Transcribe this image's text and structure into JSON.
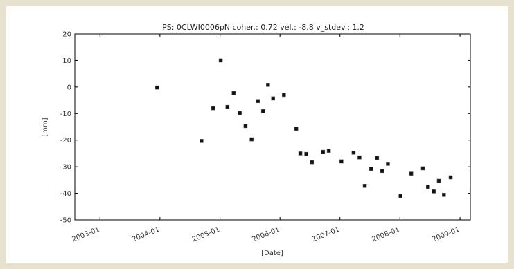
{
  "chart_data": {
    "type": "scatter",
    "title": "PS: 0CLWI0006pN coher.: 0.72 vel.: -8.8 v_stdev.: 1.2",
    "xlabel": "[Date]",
    "ylabel": "[mm]",
    "xlim": [
      "2002-08-01",
      "2009-03-05"
    ],
    "ylim": [
      -50,
      20
    ],
    "yticks": [
      20,
      10,
      0,
      -10,
      -20,
      -30,
      -40,
      -50
    ],
    "xticks": [
      "2003-01",
      "2004-01",
      "2005-01",
      "2006-01",
      "2007-01",
      "2008-01",
      "2009-01"
    ],
    "marker_color": "#111111",
    "grid": false,
    "points": [
      {
        "x": "2003-12-15",
        "y": -0.2
      },
      {
        "x": "2004-09-10",
        "y": -20.3
      },
      {
        "x": "2004-11-20",
        "y": -8.0
      },
      {
        "x": "2005-01-05",
        "y": 10.0
      },
      {
        "x": "2005-02-15",
        "y": -7.5
      },
      {
        "x": "2005-03-25",
        "y": -2.3
      },
      {
        "x": "2005-05-01",
        "y": -9.8
      },
      {
        "x": "2005-06-05",
        "y": -14.7
      },
      {
        "x": "2005-07-12",
        "y": -19.7
      },
      {
        "x": "2005-08-20",
        "y": -5.3
      },
      {
        "x": "2005-09-20",
        "y": -9.1
      },
      {
        "x": "2005-10-20",
        "y": 0.8
      },
      {
        "x": "2005-11-20",
        "y": -4.3
      },
      {
        "x": "2006-01-25",
        "y": -3.0
      },
      {
        "x": "2006-04-10",
        "y": -15.7
      },
      {
        "x": "2006-05-05",
        "y": -25.0
      },
      {
        "x": "2006-06-10",
        "y": -25.2
      },
      {
        "x": "2006-07-15",
        "y": -28.3
      },
      {
        "x": "2006-09-20",
        "y": -24.4
      },
      {
        "x": "2006-10-25",
        "y": -24.0
      },
      {
        "x": "2007-01-10",
        "y": -28.0
      },
      {
        "x": "2007-03-25",
        "y": -24.7
      },
      {
        "x": "2007-04-30",
        "y": -26.5
      },
      {
        "x": "2007-06-01",
        "y": -37.2
      },
      {
        "x": "2007-07-10",
        "y": -30.8
      },
      {
        "x": "2007-08-15",
        "y": -26.7
      },
      {
        "x": "2007-09-15",
        "y": -31.6
      },
      {
        "x": "2007-10-20",
        "y": -28.9
      },
      {
        "x": "2008-01-05",
        "y": -41.0
      },
      {
        "x": "2008-03-10",
        "y": -32.6
      },
      {
        "x": "2008-05-20",
        "y": -30.6
      },
      {
        "x": "2008-06-20",
        "y": -37.6
      },
      {
        "x": "2008-07-25",
        "y": -39.3
      },
      {
        "x": "2008-08-25",
        "y": -35.3
      },
      {
        "x": "2008-09-25",
        "y": -40.6
      },
      {
        "x": "2008-11-05",
        "y": -34.0
      }
    ]
  }
}
